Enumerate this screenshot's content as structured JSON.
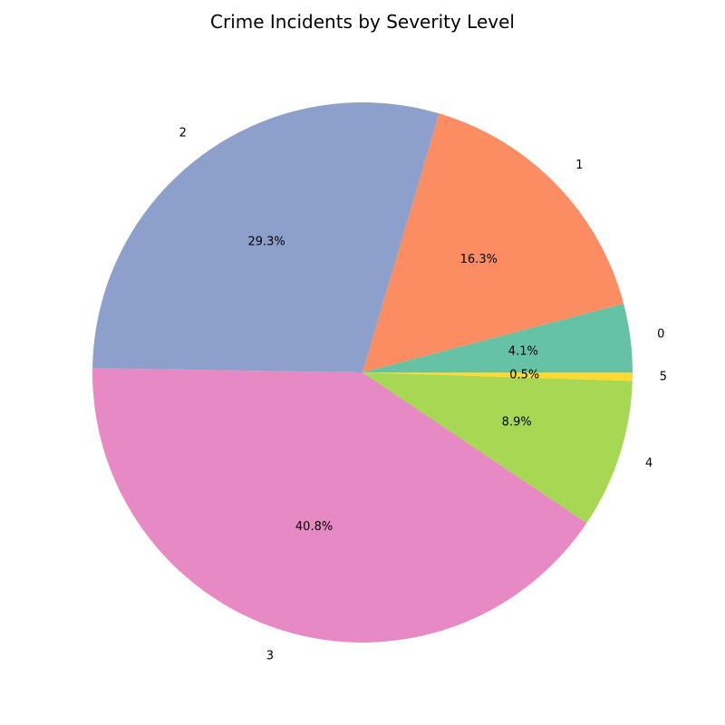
{
  "chart_data": {
    "type": "pie",
    "title": "Crime Incidents by Severity Level",
    "categories": [
      "0",
      "1",
      "2",
      "3",
      "4",
      "5"
    ],
    "values": [
      4.1,
      16.3,
      29.3,
      40.8,
      8.9,
      0.5
    ],
    "value_labels": [
      "4.1%",
      "16.3%",
      "29.3%",
      "40.8%",
      "8.9%",
      "0.5%"
    ],
    "colors": [
      "#66c2a5",
      "#fc8d62",
      "#8da0cb",
      "#e78ac3",
      "#a6d854",
      "#ffd92f"
    ],
    "start_angle_deg": 0,
    "direction": "counterclockwise",
    "legend": "none"
  }
}
